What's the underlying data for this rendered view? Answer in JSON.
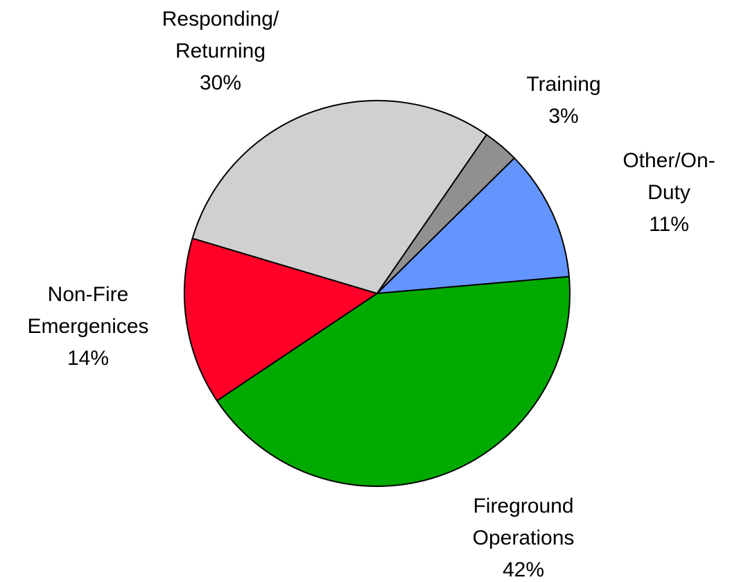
{
  "chart_data": {
    "type": "pie",
    "categories": [
      "Other/On-Duty",
      "Fireground Operations",
      "Non-Fire Emergenices",
      "Responding/ Returning",
      "Training"
    ],
    "values": [
      11,
      42,
      14,
      30,
      3
    ],
    "value_labels": [
      "11%",
      "42%",
      "14%",
      "30%",
      "3%"
    ],
    "colors": [
      "#6495ff",
      "#00aa00",
      "#ff0029",
      "#d0d0d0",
      "#909090"
    ]
  }
}
